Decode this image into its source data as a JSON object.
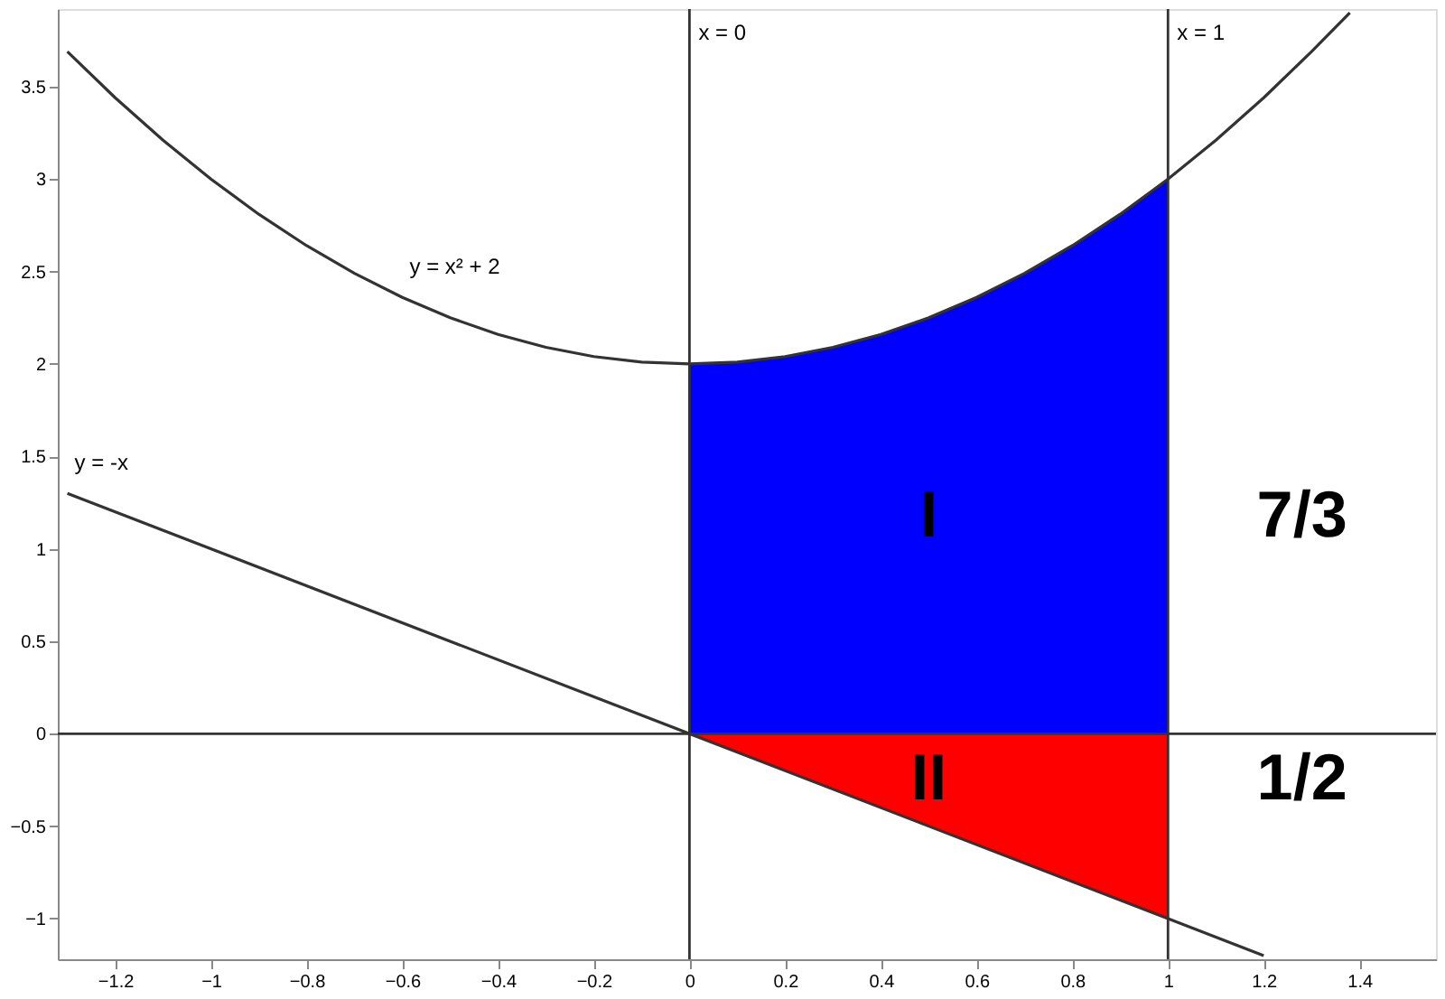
{
  "chart_data": {
    "type": "line",
    "series": [
      {
        "name": "y = x² + 2",
        "color": "#333333",
        "x": [
          -1.3,
          -1.2,
          -1.1,
          -1.0,
          -0.9,
          -0.8,
          -0.7,
          -0.6,
          -0.5,
          -0.4,
          -0.3,
          -0.2,
          -0.1,
          0,
          0.1,
          0.2,
          0.3,
          0.4,
          0.5,
          0.6,
          0.7,
          0.8,
          0.9,
          1.0,
          1.1,
          1.2,
          1.3,
          1.38
        ],
        "values": [
          3.69,
          3.44,
          3.21,
          3.0,
          2.81,
          2.64,
          2.49,
          2.36,
          2.25,
          2.16,
          2.09,
          2.04,
          2.01,
          2.0,
          2.01,
          2.04,
          2.09,
          2.16,
          2.25,
          2.36,
          2.49,
          2.64,
          2.81,
          3.0,
          3.21,
          3.44,
          3.69,
          3.9
        ]
      },
      {
        "name": "y = -x",
        "color": "#333333",
        "x": [
          -1.3,
          1.2
        ],
        "values": [
          1.3,
          -1.2
        ]
      },
      {
        "color": "#0000ff",
        "type": "area",
        "x": [
          0,
          0.1,
          0.2,
          0.3,
          0.4,
          0.5,
          0.6,
          0.7,
          0.8,
          0.9,
          1.0
        ],
        "values": [
          2.0,
          2.01,
          2.04,
          2.09,
          2.16,
          2.25,
          2.36,
          2.49,
          2.64,
          2.81,
          3.0
        ]
      },
      {
        "color": "#ff0000",
        "type": "area",
        "x": [
          0,
          1
        ],
        "values": [
          0,
          -1
        ]
      }
    ],
    "xlim": [
      -1.32,
      1.56
    ],
    "ylim": [
      -1.22,
      3.92
    ],
    "xticks": [
      -1.2,
      -1,
      -0.8,
      -0.6,
      -0.4,
      -0.2,
      0,
      0.2,
      0.4,
      0.6,
      0.8,
      1,
      1.2,
      1.4
    ],
    "yticks": [
      -1,
      -0.5,
      0,
      0.5,
      1,
      1.5,
      2,
      2.5,
      3,
      3.5
    ],
    "ref_lines": [
      {
        "axis": "x",
        "value": 0,
        "label": "x = 0",
        "color": "#333333"
      },
      {
        "axis": "x",
        "value": 1,
        "label": "x = 1",
        "color": "#333333"
      },
      {
        "axis": "y",
        "value": 0,
        "color": "#333333"
      }
    ],
    "annotations": [
      "I",
      "II",
      "7/3",
      "1/2"
    ],
    "grid": false
  }
}
